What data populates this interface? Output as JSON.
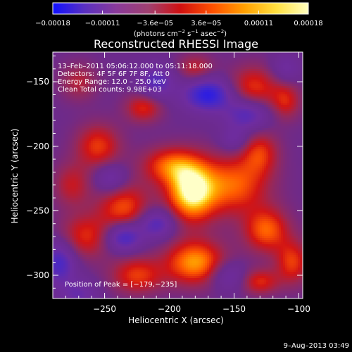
{
  "chart_data": {
    "type": "heatmap",
    "title": "Reconstructed RHESSI Image",
    "xlabel": "Heliocentric X (arcsec)",
    "ylabel": "Heliocentric Y (arcsec)",
    "xlim": [
      -290,
      -97
    ],
    "ylim": [
      -318,
      -127
    ],
    "x_ticks": [
      -250,
      -200,
      -150,
      -100
    ],
    "y_ticks": [
      -150,
      -200,
      -250,
      -300
    ],
    "x_tick_labels": [
      "−250",
      "−200",
      "−150",
      "−100"
    ],
    "y_tick_labels": [
      "−150",
      "−200",
      "−250",
      "−300"
    ],
    "colorbar": {
      "range": [
        -0.00018,
        0.00018
      ],
      "ticks": [
        -0.00018,
        -0.00011,
        -3.6e-05,
        3.6e-05,
        0.00011,
        0.00018
      ],
      "tick_labels": [
        "−0.00018",
        "−0.00011",
        "−3.6e−05",
        "3.6e−05",
        "0.00011",
        "0.00018"
      ],
      "unit_text": "(photons cm",
      "unit_sup1": "−2",
      "unit_mid1": " s",
      "unit_sup2": "−1",
      "unit_mid2": " asec",
      "unit_sup3": "−2",
      "unit_end": ")",
      "colors": [
        "#1010ff",
        "#5a30c0",
        "#8a3a9a",
        "#a04070",
        "#d01010",
        "#ff5000",
        "#ffa000",
        "#ffe040",
        "#ffffc0"
      ]
    },
    "annotations": {
      "time": "13–Feb–2011 05:06:12.000 to 05:11:18.000",
      "detectors": "Detectors: 4F 5F 6F 7F 8F, Att 0",
      "energy": "Energy Range: 12.0 – 25.0 keV",
      "clean": "Clean     Total counts: 9.98E+03",
      "peak": "Position of Peak = [−179,−235]"
    },
    "peak": {
      "x": -179,
      "y": -235
    },
    "blobs": [
      {
        "x": -183,
        "y": -235,
        "sx": 13,
        "sy": 16,
        "a": 1.0
      },
      {
        "x": -200,
        "y": -215,
        "sx": 15,
        "sy": 10,
        "a": 0.55
      },
      {
        "x": -235,
        "y": -248,
        "sx": 14,
        "sy": 14,
        "a": 0.55
      },
      {
        "x": -265,
        "y": -270,
        "sx": 14,
        "sy": 12,
        "a": 0.45
      },
      {
        "x": -180,
        "y": -290,
        "sx": 16,
        "sy": 12,
        "a": 0.75
      },
      {
        "x": -225,
        "y": -300,
        "sx": 14,
        "sy": 10,
        "a": 0.5
      },
      {
        "x": -150,
        "y": -230,
        "sx": 18,
        "sy": 16,
        "a": 0.6
      },
      {
        "x": -130,
        "y": -205,
        "sx": 10,
        "sy": 12,
        "a": 0.45
      },
      {
        "x": -125,
        "y": -265,
        "sx": 12,
        "sy": 12,
        "a": 0.6
      },
      {
        "x": -105,
        "y": -290,
        "sx": 9,
        "sy": 12,
        "a": 0.5
      },
      {
        "x": -130,
        "y": -305,
        "sx": 10,
        "sy": 7,
        "a": 0.45
      },
      {
        "x": -255,
        "y": -200,
        "sx": 12,
        "sy": 12,
        "a": 0.5
      },
      {
        "x": -275,
        "y": -230,
        "sx": 10,
        "sy": 12,
        "a": 0.35
      },
      {
        "x": -220,
        "y": -170,
        "sx": 10,
        "sy": 8,
        "a": 0.45
      },
      {
        "x": -135,
        "y": -155,
        "sx": 14,
        "sy": 12,
        "a": 0.5
      },
      {
        "x": -110,
        "y": -165,
        "sx": 8,
        "sy": 10,
        "a": 0.4
      },
      {
        "x": -180,
        "y": -140,
        "sx": 10,
        "sy": 8,
        "a": 0.35
      },
      {
        "x": -270,
        "y": -150,
        "sx": 10,
        "sy": 10,
        "a": 0.3
      },
      {
        "x": -235,
        "y": -270,
        "sx": 10,
        "sy": 8,
        "a": -0.7
      },
      {
        "x": -210,
        "y": -260,
        "sx": 10,
        "sy": 8,
        "a": -0.55
      },
      {
        "x": -170,
        "y": -160,
        "sx": 13,
        "sy": 9,
        "a": -0.8
      },
      {
        "x": -210,
        "y": -150,
        "sx": 10,
        "sy": 9,
        "a": -0.5
      },
      {
        "x": -140,
        "y": -175,
        "sx": 12,
        "sy": 9,
        "a": -0.55
      },
      {
        "x": -285,
        "y": -290,
        "sx": 9,
        "sy": 12,
        "a": -0.6
      },
      {
        "x": -270,
        "y": -315,
        "sx": 10,
        "sy": 8,
        "a": -0.35
      },
      {
        "x": -245,
        "y": -225,
        "sx": 9,
        "sy": 8,
        "a": -0.4
      },
      {
        "x": -155,
        "y": -300,
        "sx": 10,
        "sy": 8,
        "a": -0.35
      },
      {
        "x": -110,
        "y": -140,
        "sx": 8,
        "sy": 8,
        "a": -0.3
      },
      {
        "x": -150,
        "y": -195,
        "sx": 8,
        "sy": 7,
        "a": -0.3
      }
    ]
  },
  "footer": {
    "date": "9–Aug–2013 03:49"
  }
}
